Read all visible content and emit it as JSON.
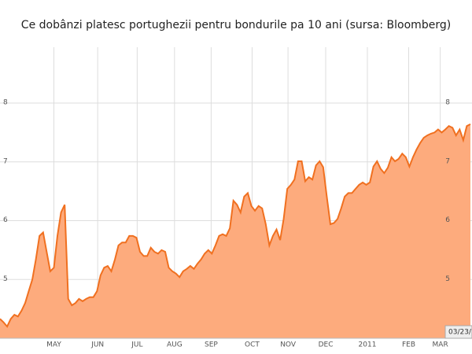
{
  "chart_data": {
    "type": "area",
    "title": "Ce dobânzi platesc portughezii pentru bondurile pa 10 ani (sursa: Bloomberg)",
    "values": [
      4.33,
      4.27,
      4.2,
      4.33,
      4.4,
      4.37,
      4.47,
      4.6,
      4.8,
      5.0,
      5.34,
      5.74,
      5.8,
      5.47,
      5.14,
      5.2,
      5.74,
      6.14,
      6.27,
      4.67,
      4.56,
      4.6,
      4.67,
      4.63,
      4.67,
      4.7,
      4.7,
      4.8,
      5.07,
      5.2,
      5.23,
      5.14,
      5.34,
      5.58,
      5.63,
      5.63,
      5.74,
      5.74,
      5.71,
      5.47,
      5.4,
      5.4,
      5.54,
      5.47,
      5.44,
      5.5,
      5.47,
      5.2,
      5.14,
      5.1,
      5.04,
      5.14,
      5.18,
      5.23,
      5.18,
      5.27,
      5.34,
      5.44,
      5.5,
      5.44,
      5.58,
      5.74,
      5.77,
      5.74,
      5.87,
      6.34,
      6.27,
      6.14,
      6.41,
      6.47,
      6.25,
      6.17,
      6.25,
      6.21,
      5.94,
      5.58,
      5.74,
      5.85,
      5.67,
      6.03,
      6.54,
      6.61,
      6.7,
      7.01,
      7.01,
      6.67,
      6.74,
      6.7,
      6.94,
      7.01,
      6.91,
      6.41,
      5.94,
      5.96,
      6.03,
      6.21,
      6.41,
      6.47,
      6.47,
      6.54,
      6.61,
      6.65,
      6.61,
      6.65,
      6.92,
      7.01,
      6.88,
      6.81,
      6.9,
      7.08,
      7.01,
      7.05,
      7.14,
      7.08,
      6.92,
      7.08,
      7.21,
      7.32,
      7.41,
      7.45,
      7.48,
      7.5,
      7.55,
      7.5,
      7.55,
      7.61,
      7.58,
      7.45,
      7.55,
      7.37,
      7.61,
      7.64
    ],
    "color": "#f07020",
    "fill": "#fdab7d",
    "xlim": [
      0,
      131
    ],
    "xticks": [
      {
        "value": 15,
        "label": "MAY"
      },
      {
        "value": 27.2,
        "label": "JUN"
      },
      {
        "value": 38.2,
        "label": "JUL"
      },
      {
        "value": 48.6,
        "label": "AUG"
      },
      {
        "value": 58.8,
        "label": "SEP"
      },
      {
        "value": 70.2,
        "label": "OCT"
      },
      {
        "value": 80.2,
        "label": "NOV"
      },
      {
        "value": 90.7,
        "label": "DEC"
      },
      {
        "value": 102.3,
        "label": "2011"
      },
      {
        "value": 113.8,
        "label": "FEB"
      },
      {
        "value": 122.6,
        "label": "MAR"
      }
    ],
    "ylim": [
      4,
      8.95
    ],
    "yticks": [
      5,
      6,
      7,
      8
    ],
    "grid": true,
    "annotation": "03/23/"
  }
}
